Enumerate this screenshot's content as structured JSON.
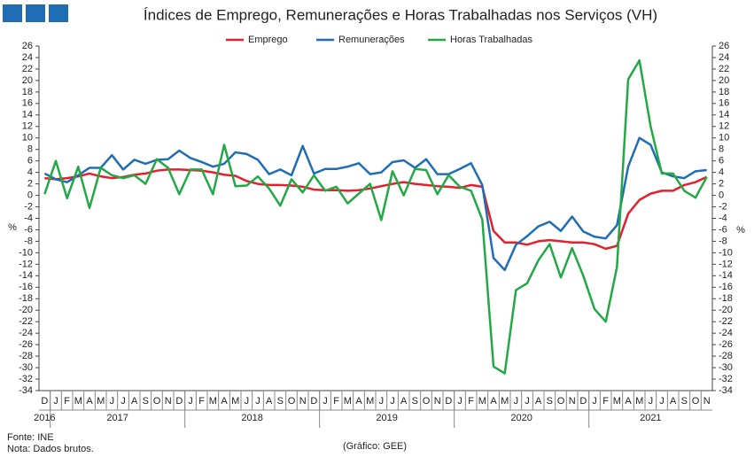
{
  "chart_data": {
    "type": "line",
    "title": "Índices de Emprego, Remunerações e Horas Trabalhadas nos Serviços (VH)",
    "y_label": "%",
    "y2_label": "%",
    "categories": [
      "D",
      "J",
      "F",
      "M",
      "A",
      "M",
      "J",
      "J",
      "A",
      "S",
      "O",
      "N",
      "D",
      "J",
      "F",
      "M",
      "A",
      "M",
      "J",
      "J",
      "A",
      "S",
      "O",
      "N",
      "D",
      "J",
      "F",
      "M",
      "A",
      "M",
      "J",
      "J",
      "A",
      "S",
      "O",
      "N",
      "D",
      "J",
      "F",
      "M",
      "A",
      "M",
      "J",
      "J",
      "A",
      "S",
      "O",
      "N",
      "D",
      "J",
      "F",
      "M",
      "A",
      "M",
      "J",
      "J",
      "A",
      "S",
      "O",
      "N"
    ],
    "year_labels": [
      "2016",
      "2017",
      "2018",
      "2019",
      "2020",
      "2021"
    ],
    "series": [
      {
        "name": "Emprego",
        "color": "#e3202b",
        "values": [
          3.0,
          2.8,
          3.0,
          3.3,
          3.8,
          3.3,
          3.0,
          3.2,
          3.6,
          3.8,
          4.3,
          4.5,
          4.5,
          4.4,
          4.3,
          4.0,
          3.6,
          3.4,
          2.5,
          2.0,
          1.8,
          1.8,
          1.7,
          1.5,
          1.0,
          0.9,
          0.9,
          0.8,
          0.9,
          1.2,
          1.6,
          2.0,
          2.3,
          2.0,
          1.8,
          1.6,
          1.5,
          1.3,
          1.8,
          1.5,
          -6.2,
          -8.2,
          -8.2,
          -8.6,
          -8.0,
          -7.8,
          -8.0,
          -8.2,
          -8.2,
          -8.5,
          -9.3,
          -8.8,
          -3.2,
          -0.8,
          0.3,
          0.8,
          0.8,
          1.8,
          2.3,
          3.2
        ]
      },
      {
        "name": "Remunerações",
        "color": "#1f6db5",
        "values": [
          3.8,
          2.8,
          2.3,
          3.5,
          4.8,
          4.8,
          7.0,
          4.5,
          6.2,
          5.5,
          6.2,
          6.3,
          7.8,
          6.5,
          5.8,
          5.0,
          5.5,
          7.5,
          7.2,
          6.2,
          3.7,
          4.5,
          3.5,
          8.6,
          3.8,
          4.6,
          4.6,
          5.0,
          5.6,
          3.7,
          4.0,
          5.8,
          6.1,
          4.8,
          6.3,
          3.7,
          3.7,
          4.6,
          5.6,
          1.8,
          -10.9,
          -13.0,
          -8.6,
          -7.1,
          -5.4,
          -4.6,
          -6.2,
          -3.7,
          -6.3,
          -7.2,
          -7.5,
          -5.2,
          5.0,
          10.0,
          8.8,
          4.0,
          3.3,
          3.0,
          4.2,
          4.4
        ]
      },
      {
        "name": "Horas Trabalhadas",
        "color": "#22a845",
        "values": [
          0.2,
          6.0,
          -0.5,
          5.0,
          -2.2,
          4.8,
          3.5,
          3.0,
          3.5,
          2.0,
          6.3,
          4.8,
          0.2,
          4.5,
          4.5,
          0.2,
          8.8,
          1.6,
          1.7,
          3.3,
          1.2,
          -1.8,
          2.8,
          0.5,
          3.5,
          0.8,
          1.5,
          -1.4,
          0.3,
          2.0,
          -4.3,
          4.2,
          0.0,
          4.6,
          4.4,
          0.2,
          3.5,
          1.5,
          0.8,
          -4.2,
          -29.8,
          -31.0,
          -16.5,
          -15.3,
          -11.3,
          -8.5,
          -14.3,
          -9.2,
          -14.0,
          -19.8,
          -22.0,
          -12.5,
          20.2,
          23.5,
          12.0,
          3.8,
          3.8,
          0.8,
          -0.4,
          3.2
        ]
      }
    ],
    "ylim": [
      -34,
      26
    ],
    "yticks": [
      -34,
      -32,
      -30,
      -28,
      -26,
      -24,
      -22,
      -20,
      -18,
      -16,
      -14,
      -12,
      -10,
      -8,
      -6,
      -4,
      -2,
      0,
      2,
      4,
      6,
      8,
      10,
      12,
      14,
      16,
      18,
      20,
      22,
      24,
      26
    ],
    "y2lim": [
      -34,
      26
    ],
    "y2ticks": [
      -34,
      -32,
      -30,
      -28,
      -26,
      -24,
      -22,
      -20,
      -18,
      -16,
      -14,
      -12,
      -10,
      -8,
      -6,
      -4,
      -2,
      0,
      2,
      4,
      6,
      8,
      10,
      12,
      14,
      16,
      18,
      20,
      22,
      24,
      26
    ],
    "legend": "top",
    "source": "Fonte: INE",
    "note": "Nota: Dados brutos.",
    "credit": "(Gráfico: GEE)"
  }
}
